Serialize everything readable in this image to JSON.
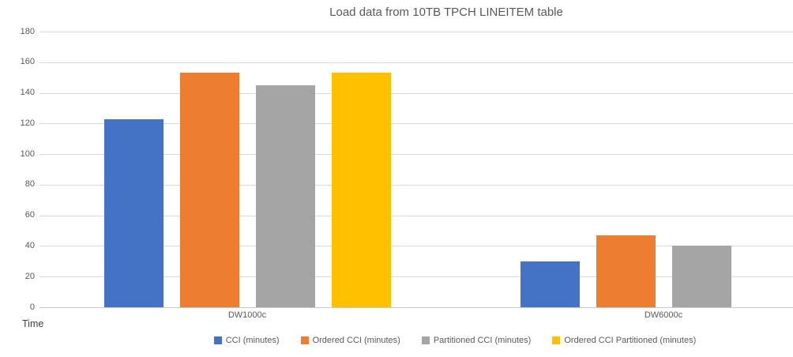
{
  "chart_data": {
    "type": "bar",
    "title": "Load data from 10TB TPCH LINEITEM table",
    "xlabel": "Time",
    "ylabel": "",
    "categories": [
      "DW1000c",
      "DW6000c"
    ],
    "series": [
      {
        "name": "CCI (minutes)",
        "color": "#4472C4",
        "values": [
          123,
          30
        ]
      },
      {
        "name": "Ordered CCI (minutes)",
        "color": "#ED7D31",
        "values": [
          153,
          47
        ]
      },
      {
        "name": "Partitioned CCI (minutes)",
        "color": "#A5A5A5",
        "values": [
          145,
          40
        ]
      },
      {
        "name": "Ordered CCI Partitioned (minutes)",
        "color": "#FFC000",
        "values": [
          153,
          null
        ]
      }
    ],
    "ylim": [
      0,
      180
    ],
    "ytick_step": 20,
    "grid": true,
    "legend_position": "bottom",
    "colors": {
      "grid": "#D9D9D9",
      "axis_text": "#595959",
      "title_text": "#595959"
    }
  }
}
